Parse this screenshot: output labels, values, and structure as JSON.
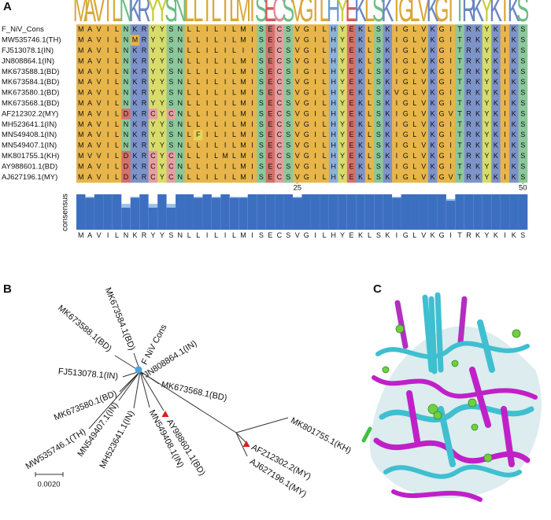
{
  "panel_labels": {
    "a": "A",
    "b": "B",
    "c": "C"
  },
  "alignment": {
    "logo": "MAVILNKRYYSNLLILILMISECSVGILHYEKLSKIGLVKGITRKYKIKS",
    "rows": [
      {
        "name": "F_NiV_Cons",
        "sequence": "MAVILNKRYYSNLLILILMISECSVGILHYEKLSKIGLVKGITRKYKIKS"
      },
      {
        "name": "MW535746.1(TH)",
        "sequence": "MAVILNMRYYSNLLILILMISECSVGILHYEKLSKIGLVKGITRKYKIKS"
      },
      {
        "name": "FJ513078.1(IN)",
        "sequence": "MAVILNKRYYSNLLILILIISECSVGILHYEKLSKIGLVKGITRKYKIKS"
      },
      {
        "name": "JN808864.1(IN)",
        "sequence": "MAVILNKRYYSNLLILILMISECSVGILHYEKLSKIGLVKGITRKYKIKS"
      },
      {
        "name": "MK673588.1(BD)",
        "sequence": "MAVILNKRYYSNLLILILMISECSIGILHYEKLSKIGLVKGITRKYKIKS"
      },
      {
        "name": "MK673584.1(BD)",
        "sequence": "MAVILNKRYYSNLLILILMISECSVGILHYEKLSKIGLVKGITRKYKIKS"
      },
      {
        "name": "MK673580.1(BD)",
        "sequence": "MAVILNKRYYSNLLILILMISECSVGILHYEKLSKVGLVKGITRKYKIKS"
      },
      {
        "name": "MK673568.1(BD)",
        "sequence": "MAVILNKRYYSNLLILILMISECSVGILHYEKLSKIGLVKGITRKYKIKS"
      },
      {
        "name": "AF212302.2(MY)",
        "sequence": "MAVILDKRCYCNLLILILMISECSVGILHYEKLSKIGLVKGVTRKYKIKS"
      },
      {
        "name": "MH523641.1(IN)",
        "sequence": "MAVILNKRYYSNLLILILMISECSVGILHYEKLSKIGLVKGITRKYKIKS"
      },
      {
        "name": "MN549408.1(IN)",
        "sequence": "MAVILNKRYYSNLFILILMISECSVGILHYEKLSKIGLVKGITRKYKIKS"
      },
      {
        "name": "MN549407.1(IN)",
        "sequence": "MAVILNKRYYSNLLILILMISECSVGILHYEKLSKIGLVKGITRKYKIKS"
      },
      {
        "name": "MK801755.1(KH)",
        "sequence": "MVVILDKRCYCNLLILMLMISECSVGILHYEKLSKIGLVKGITRKYKIKS"
      },
      {
        "name": "AY988601.1(BD)",
        "sequence": "MAVILDKRCYCNLLILILMISECSVGILHYEKLSKIGLVKGITRKYKIKS"
      },
      {
        "name": "AJ627196.1(MY)",
        "sequence": "MAVILDKRCYCNLLILILMISECSVGILHYEKLSKIGLVKGVTRKYKIKS"
      }
    ],
    "position_ticks": [
      25,
      50
    ],
    "consensus_label": "consensus",
    "consensus": "MAVILNKRYYSNLLILILMISECSVGILHYEKLSKIGLVKGITRKYKIKS",
    "conservation": [
      100,
      93,
      100,
      100,
      100,
      73,
      93,
      100,
      73,
      100,
      73,
      100,
      100,
      93,
      100,
      93,
      100,
      93,
      93,
      100,
      100,
      100,
      100,
      100,
      93,
      100,
      100,
      100,
      100,
      100,
      100,
      100,
      100,
      100,
      100,
      93,
      100,
      100,
      100,
      100,
      100,
      87,
      100,
      100,
      100,
      100,
      100,
      100,
      100,
      100
    ]
  },
  "tree": {
    "leaves": [
      "F NiV Cons",
      "JN808864.1(IN)",
      "MK673584.1(BD)",
      "MK673588.1(BD)",
      "FJ513078.1(IN)",
      "MK673568.1(BD)",
      "MK673580.1(BD)",
      "MW535746.1(TH)",
      "MN549407.1(IN)",
      "MH523641.1(IN)",
      "MN549408.1(IN)",
      "AY988601.1(BD)",
      "AF212302.2(MY)",
      "AJ627196.1(MY)",
      "MK801755.1(KH)"
    ],
    "scale_label": "0.0020"
  }
}
